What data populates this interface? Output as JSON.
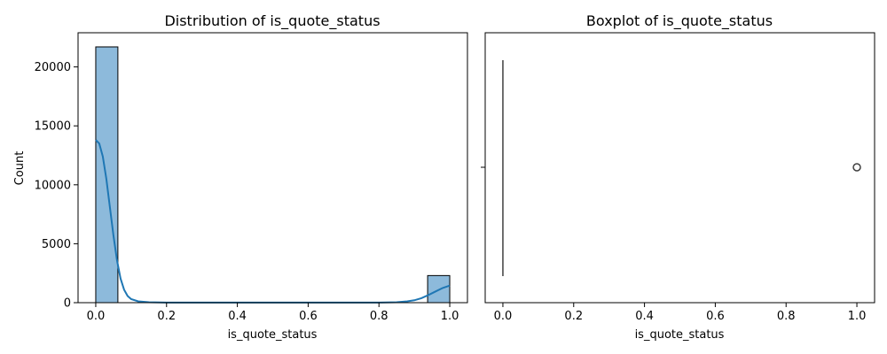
{
  "chart_data": [
    {
      "type": "bar",
      "subtype": "histogram-with-kde",
      "title": "Distribution of is_quote_status",
      "xlabel": "is_quote_status",
      "ylabel": "Count",
      "xlim": [
        -0.05,
        1.05
      ],
      "ylim": [
        0,
        22900
      ],
      "xticks": [
        "0.0",
        "0.2",
        "0.4",
        "0.6",
        "0.8",
        "1.0"
      ],
      "yticks": [
        "0",
        "5000",
        "10000",
        "15000",
        "20000"
      ],
      "grid": false,
      "bar_color": "#8dbadb",
      "edge_color": "#000000",
      "line_color": "#1f77b4",
      "bins": [
        {
          "x0": 0.0,
          "x1": 0.0625,
          "count": 21700
        },
        {
          "x0": 0.9375,
          "x1": 1.0,
          "count": 2300
        }
      ],
      "kde": [
        [
          0.0,
          13800
        ],
        [
          0.01,
          13500
        ],
        [
          0.02,
          12400
        ],
        [
          0.03,
          10500
        ],
        [
          0.04,
          8100
        ],
        [
          0.05,
          5700
        ],
        [
          0.06,
          3600
        ],
        [
          0.07,
          2050
        ],
        [
          0.08,
          1100
        ],
        [
          0.09,
          560
        ],
        [
          0.1,
          300
        ],
        [
          0.12,
          110
        ],
        [
          0.15,
          40
        ],
        [
          0.2,
          10
        ],
        [
          0.3,
          5
        ],
        [
          0.5,
          5
        ],
        [
          0.7,
          5
        ],
        [
          0.8,
          10
        ],
        [
          0.85,
          40
        ],
        [
          0.88,
          110
        ],
        [
          0.9,
          200
        ],
        [
          0.92,
          380
        ],
        [
          0.94,
          650
        ],
        [
          0.96,
          950
        ],
        [
          0.98,
          1250
        ],
        [
          1.0,
          1450
        ]
      ]
    },
    {
      "type": "boxplot",
      "title": "Boxplot of is_quote_status",
      "xlabel": "is_quote_status",
      "ylabel": "",
      "xlim": [
        -0.05,
        1.05
      ],
      "xticks": [
        "0.0",
        "0.2",
        "0.4",
        "0.6",
        "0.8",
        "1.0"
      ],
      "grid": false,
      "box": {
        "min": 0.0,
        "q1": 0.0,
        "median": 0.0,
        "q3": 0.0,
        "max": 0.0
      },
      "outliers": [
        1.0
      ],
      "line_color": "#3f3f3f"
    }
  ]
}
